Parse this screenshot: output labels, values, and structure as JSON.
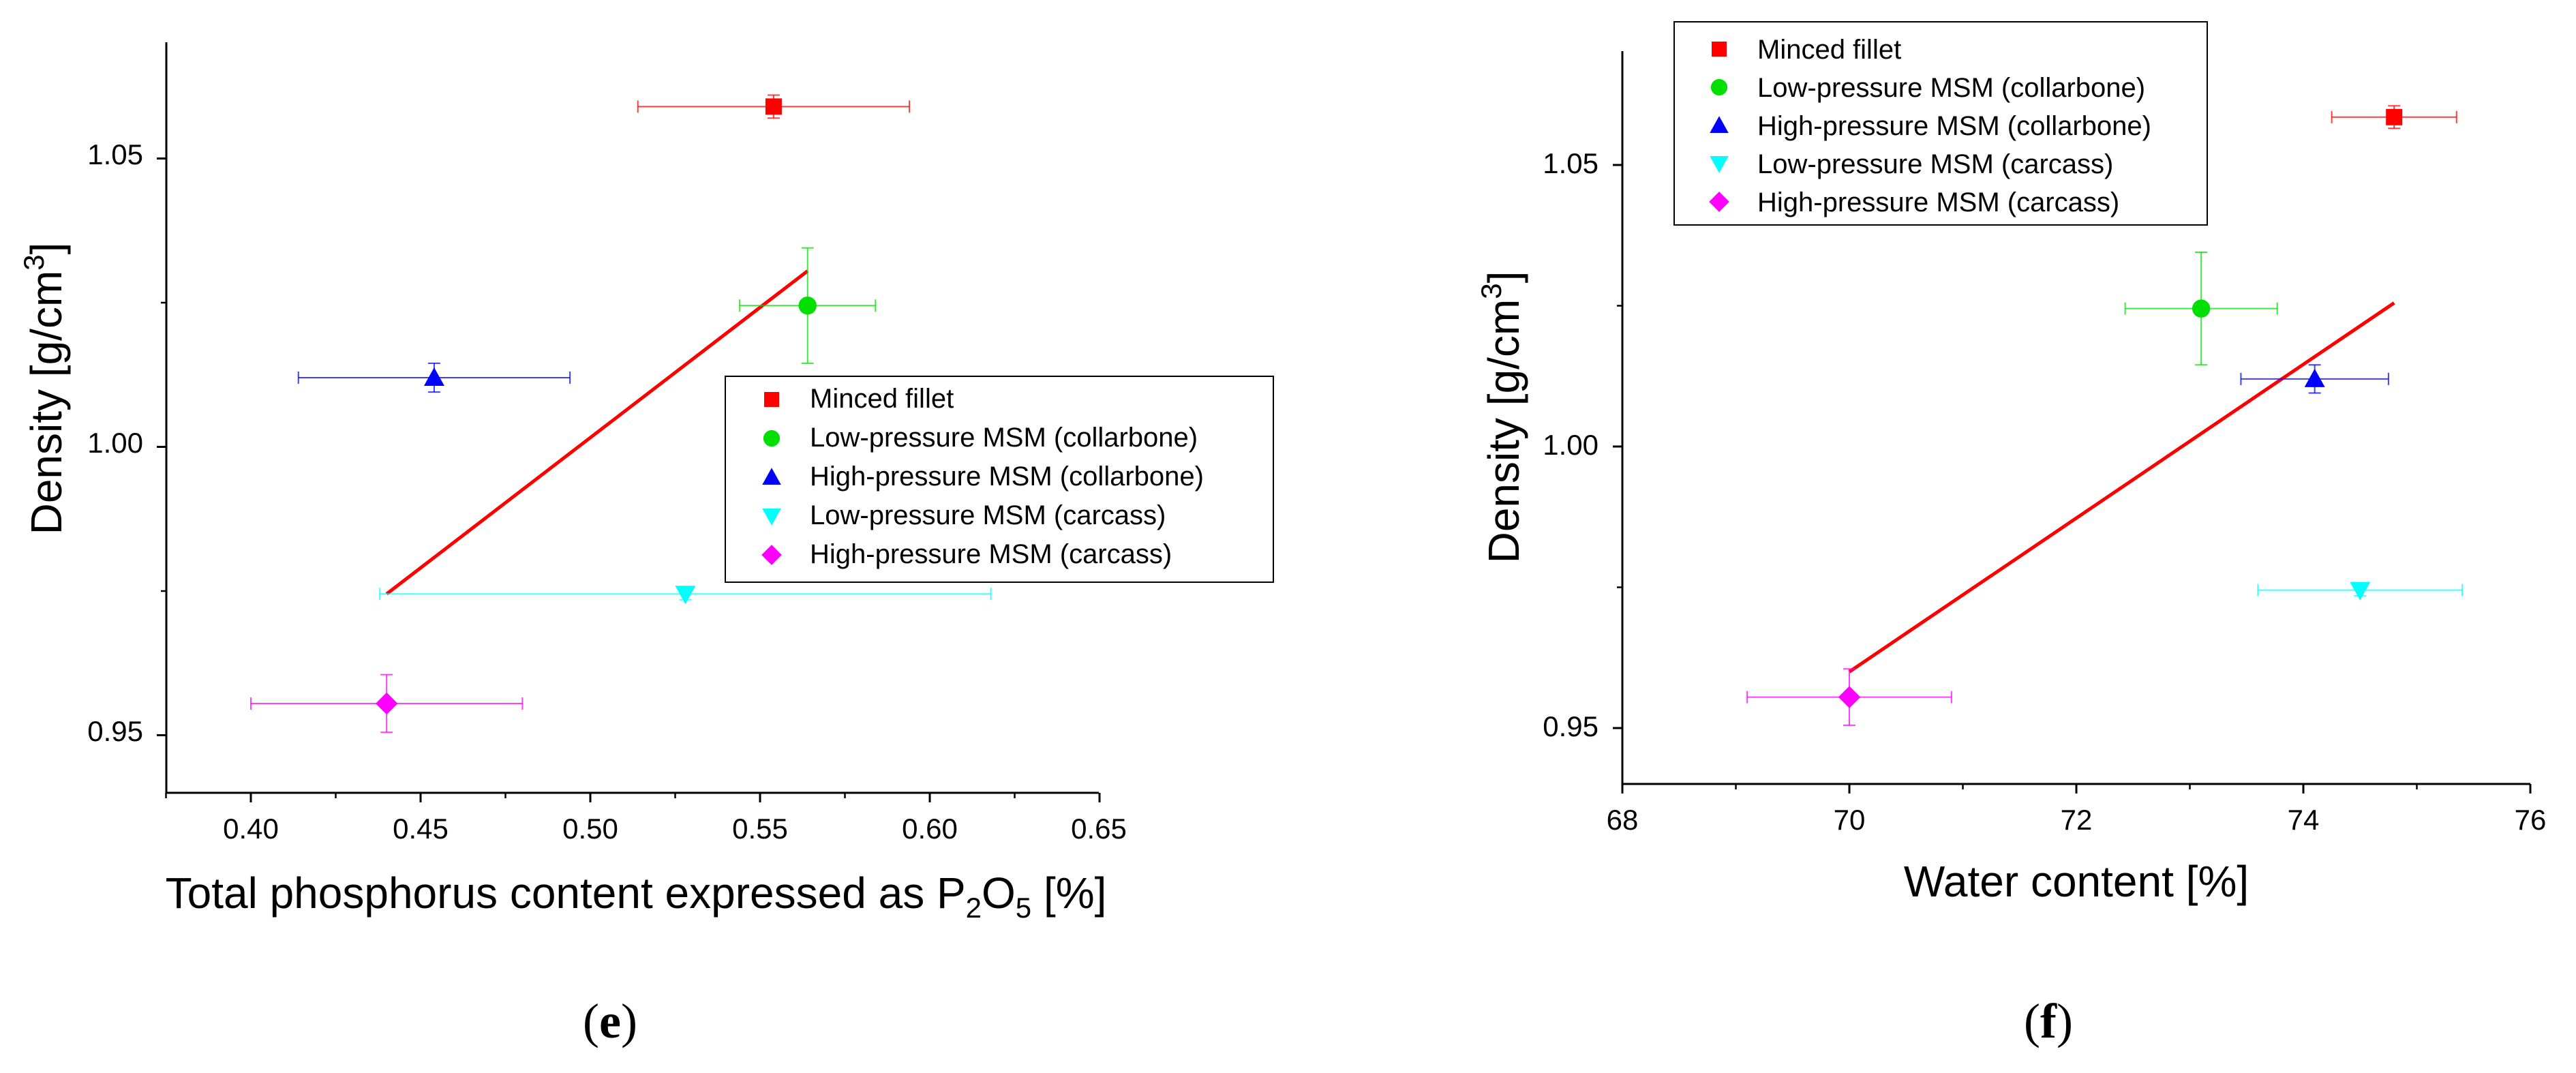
{
  "chart_data": [
    {
      "id": "e",
      "type": "scatter",
      "panel_label": "(e)",
      "xlabel": "Total phosphorus content expressed as P2O5 [%]",
      "ylabel": "Density [g/cm3]",
      "xlim": [
        0.375,
        0.65
      ],
      "ylim": [
        0.94,
        1.07
      ],
      "x_ticks": [
        0.4,
        0.45,
        0.5,
        0.55,
        0.6,
        0.65
      ],
      "x_tick_labels": [
        "0.40",
        "0.45",
        "0.50",
        "0.55",
        "0.60",
        "0.65"
      ],
      "y_ticks": [
        0.95,
        1.0,
        1.05
      ],
      "y_tick_labels": [
        "0.95",
        "1.00",
        "1.05"
      ],
      "legend_position": "center-right",
      "series": [
        {
          "name": "Minced fillet",
          "marker": "square",
          "color": "#ff0000",
          "x": 0.554,
          "y": 1.059,
          "xerr": 0.04,
          "yerr": 0.002
        },
        {
          "name": "Low-pressure MSM (collarbone)",
          "marker": "circle",
          "color": "#00e000",
          "x": 0.564,
          "y": 1.0245,
          "xerr": 0.02,
          "yerr": 0.01
        },
        {
          "name": "High-pressure MSM (collarbone)",
          "marker": "triangle-up",
          "color": "#0000ff",
          "x": 0.454,
          "y": 1.012,
          "xerr": 0.04,
          "yerr": 0.0025
        },
        {
          "name": "Low-pressure MSM (carcass)",
          "marker": "triangle-down",
          "color": "#00ffff",
          "x": 0.528,
          "y": 0.9745,
          "xerr": 0.09,
          "yerr": 0.001
        },
        {
          "name": "High-pressure MSM (carcass)",
          "marker": "diamond",
          "color": "#ff00ff",
          "x": 0.44,
          "y": 0.9555,
          "xerr": 0.04,
          "yerr": 0.005
        }
      ],
      "fit_line": {
        "color": "#ff0000",
        "x": [
          0.44,
          0.564
        ],
        "y": [
          0.9745,
          1.0305
        ]
      }
    },
    {
      "id": "f",
      "type": "scatter",
      "panel_label": "(f)",
      "xlabel": "Water content [%]",
      "ylabel": "Density [g/cm3]",
      "xlim": [
        68,
        76
      ],
      "ylim": [
        0.94,
        1.07
      ],
      "x_ticks": [
        68,
        70,
        72,
        74,
        76
      ],
      "x_tick_labels": [
        "68",
        "70",
        "72",
        "74",
        "76"
      ],
      "y_ticks": [
        0.95,
        1.0,
        1.05
      ],
      "y_tick_labels": [
        "0.95",
        "1.00",
        "1.05"
      ],
      "legend_position": "top-left",
      "series": [
        {
          "name": "Minced fillet",
          "marker": "square",
          "color": "#ff0000",
          "x": 74.8,
          "y": 1.0585,
          "xerr": 0.55,
          "yerr": 0.002
        },
        {
          "name": "Low-pressure MSM (collarbone)",
          "marker": "circle",
          "color": "#00e000",
          "x": 73.1,
          "y": 1.0245,
          "xerr": 0.67,
          "yerr": 0.01
        },
        {
          "name": "High-pressure MSM (collarbone)",
          "marker": "triangle-up",
          "color": "#0000ff",
          "x": 74.1,
          "y": 1.012,
          "xerr": 0.65,
          "yerr": 0.0025
        },
        {
          "name": "Low-pressure MSM (carcass)",
          "marker": "triangle-down",
          "color": "#00ffff",
          "x": 74.5,
          "y": 0.9745,
          "xerr": 0.9,
          "yerr": 0.001
        },
        {
          "name": "High-pressure MSM (carcass)",
          "marker": "diamond",
          "color": "#ff00ff",
          "x": 70.0,
          "y": 0.9555,
          "xerr": 0.9,
          "yerr": 0.005
        }
      ],
      "fit_line": {
        "color": "#ff0000",
        "x": [
          70.0,
          74.8
        ],
        "y": [
          0.96,
          1.0255
        ]
      }
    }
  ]
}
